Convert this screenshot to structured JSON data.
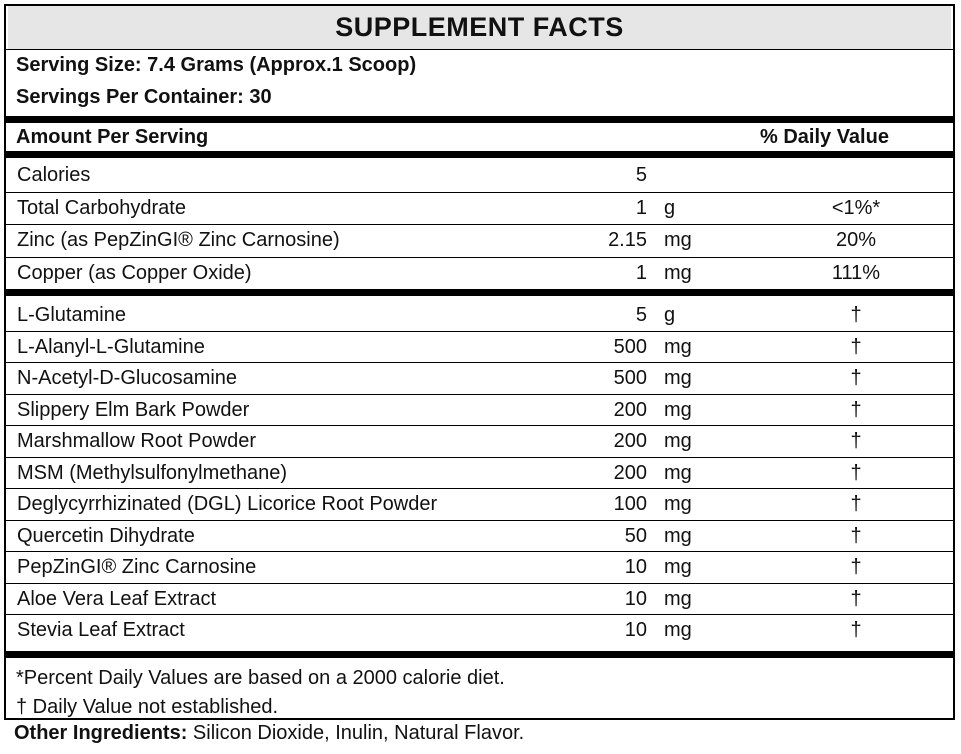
{
  "title": "SUPPLEMENT FACTS",
  "serving_size": "Serving Size: 7.4 Grams (Approx.1 Scoop)",
  "servings_per_container": "Servings Per Container: 30",
  "header": {
    "amount_label": "Amount Per Serving",
    "dv_label": "% Daily Value"
  },
  "nutrients": [
    {
      "name": "Calories",
      "amount": "5",
      "unit": "",
      "dv": ""
    },
    {
      "name": "Total Carbohydrate",
      "amount": "1",
      "unit": "g",
      "dv": "<1%*"
    },
    {
      "name": "Zinc (as PepZinGI® Zinc Carnosine)",
      "amount": "2.15",
      "unit": "mg",
      "dv": "20%"
    },
    {
      "name": "Copper (as Copper Oxide)",
      "amount": "1",
      "unit": "mg",
      "dv": "111%"
    }
  ],
  "ingredients": [
    {
      "name": "L-Glutamine",
      "amount": "5",
      "unit": "g",
      "dv": "†"
    },
    {
      "name": "L-Alanyl-L-Glutamine",
      "amount": "500",
      "unit": "mg",
      "dv": "†"
    },
    {
      "name": "N-Acetyl-D-Glucosamine",
      "amount": "500",
      "unit": "mg",
      "dv": "†"
    },
    {
      "name": "Slippery Elm Bark Powder",
      "amount": "200",
      "unit": "mg",
      "dv": "†"
    },
    {
      "name": "Marshmallow Root Powder",
      "amount": "200",
      "unit": "mg",
      "dv": "†"
    },
    {
      "name": "MSM (Methylsulfonylmethane)",
      "amount": "200",
      "unit": "mg",
      "dv": "†"
    },
    {
      "name": "Deglycyrrhizinated (DGL) Licorice Root Powder",
      "amount": "100",
      "unit": "mg",
      "dv": "†"
    },
    {
      "name": "Quercetin Dihydrate",
      "amount": "50",
      "unit": "mg",
      "dv": "†"
    },
    {
      "name": "PepZinGI® Zinc Carnosine",
      "amount": "10",
      "unit": "mg",
      "dv": "†"
    },
    {
      "name": "Aloe Vera Leaf Extract",
      "amount": "10",
      "unit": "mg",
      "dv": "†"
    },
    {
      "name": "Stevia Leaf Extract",
      "amount": "10",
      "unit": "mg",
      "dv": "†"
    }
  ],
  "footnotes": {
    "percent_note": "*Percent Daily Values are based on a 2000 calorie diet.",
    "dagger_note": "† Daily Value not established."
  },
  "other_ingredients": {
    "label": "Other Ingredients:",
    "text": " Silicon Dioxide, Inulin, Natural Flavor."
  }
}
